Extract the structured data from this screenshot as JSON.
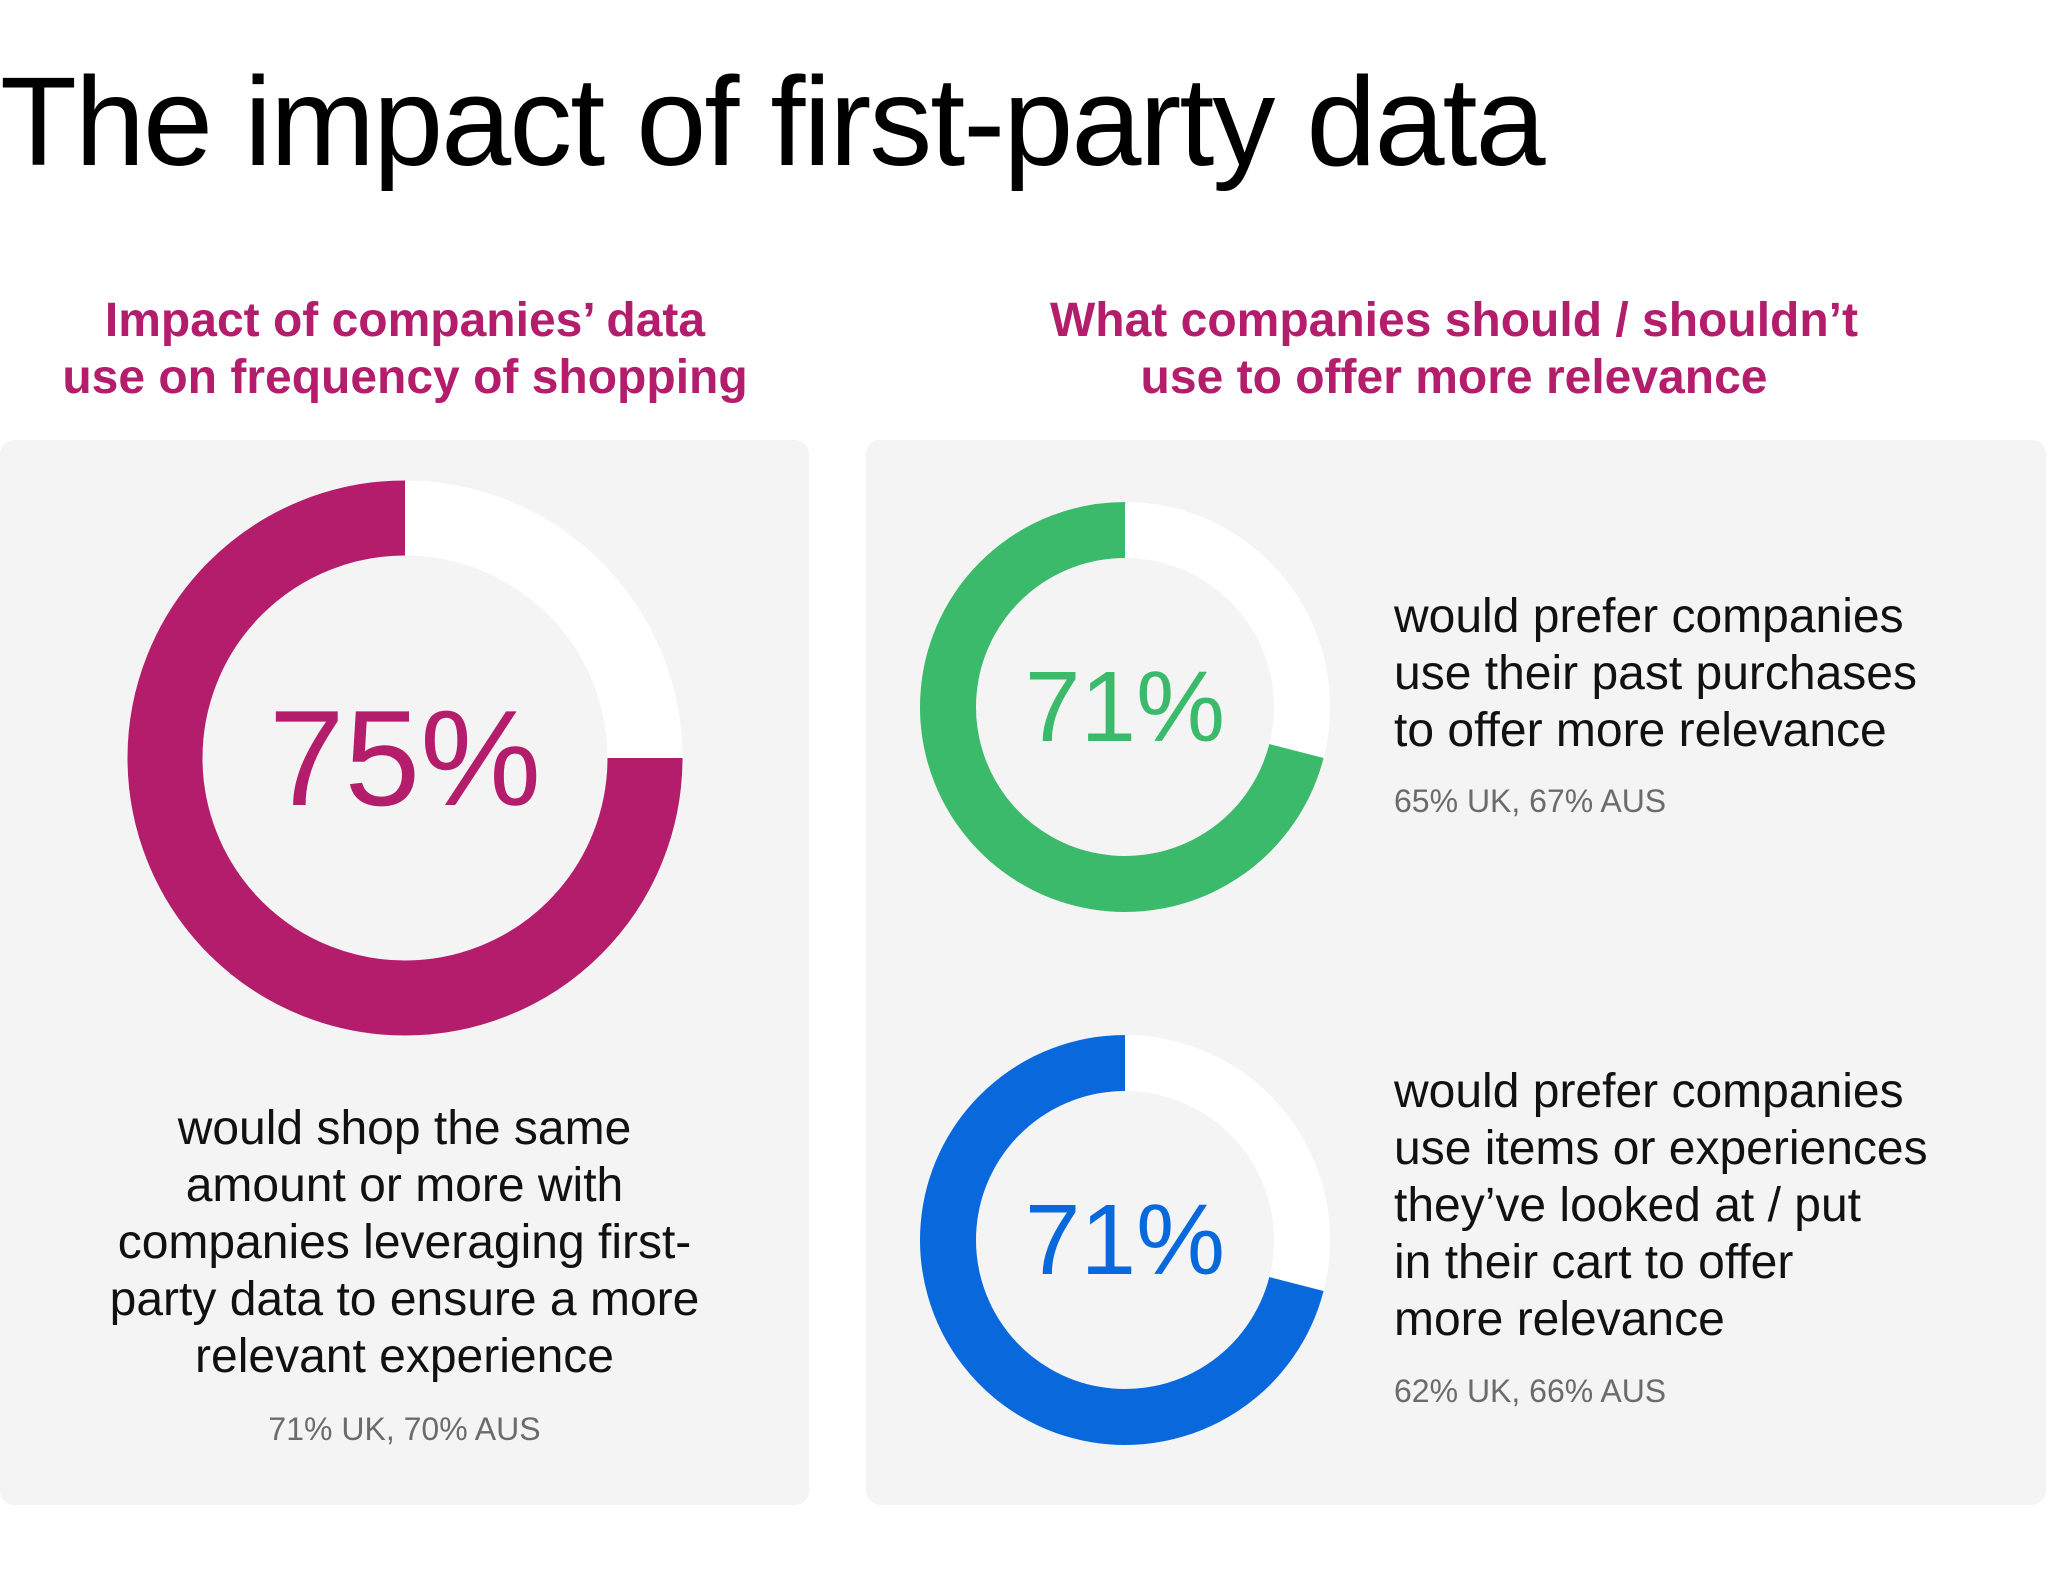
{
  "title": "The impact of first-party data",
  "sections": {
    "left": {
      "heading_lines": [
        "Impact of companies’ data",
        "use on frequency of shopping"
      ]
    },
    "right": {
      "heading_lines": [
        "What companies should / shouldn’t",
        "use to offer more relevance"
      ]
    }
  },
  "colors": {
    "magenta": "#b31d6b",
    "green": "#3aba6a",
    "blue": "#0969dc",
    "track": "#ffffff",
    "panel": "#f4f4f4"
  },
  "chart_data": [
    {
      "type": "pie",
      "variant": "donut",
      "value": 75,
      "label": "75%",
      "color": "#b31d6b",
      "description_lines": [
        "would shop the same",
        "amount or more with",
        "companies leveraging first-",
        "party data to ensure a more",
        "relevant experience"
      ],
      "note": "71% UK, 70% AUS"
    },
    {
      "type": "pie",
      "variant": "donut",
      "value": 71,
      "label": "71%",
      "color": "#3aba6a",
      "description_lines": [
        "would prefer companies",
        "use their past purchases",
        "to offer more relevance"
      ],
      "note": "65% UK, 67% AUS"
    },
    {
      "type": "pie",
      "variant": "donut",
      "value": 71,
      "label": "71%",
      "color": "#0969dc",
      "description_lines": [
        "would prefer companies",
        "use items or experiences",
        "they’ve looked at / put",
        "in  their cart to offer",
        "more relevance"
      ],
      "note": "62% UK, 66% AUS"
    }
  ]
}
